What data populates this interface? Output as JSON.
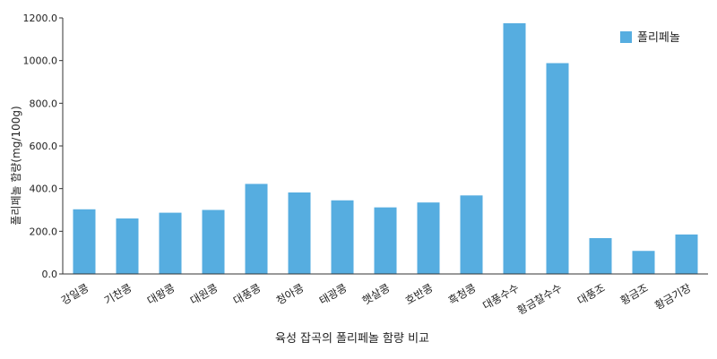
{
  "chart_data": {
    "type": "bar",
    "xlabel": "육성 잡곡의 폴리페놀 함량 비교",
    "ylabel": "폴리페놀 함량(mg/100g)",
    "ylim": [
      0,
      1200
    ],
    "yticks": [
      "0.0",
      "200.0",
      "400.0",
      "600.0",
      "800.0",
      "1000.0",
      "1200.0"
    ],
    "grid": false,
    "legend_position": "top-right",
    "categories": [
      "강일콩",
      "기찬콩",
      "대왕콩",
      "대원콩",
      "대풍콩",
      "청아콩",
      "태광콩",
      "햇살콩",
      "호반콩",
      "흑청콩",
      "대풍수수",
      "황금찰수수",
      "대풍조",
      "황금조",
      "황금기장"
    ],
    "series": [
      {
        "name": "폴리페놀",
        "color": "#56ade0",
        "values": [
          303,
          260,
          287,
          300,
          422,
          382,
          345,
          312,
          335,
          368,
          1175,
          988,
          168,
          108,
          185
        ]
      }
    ]
  }
}
